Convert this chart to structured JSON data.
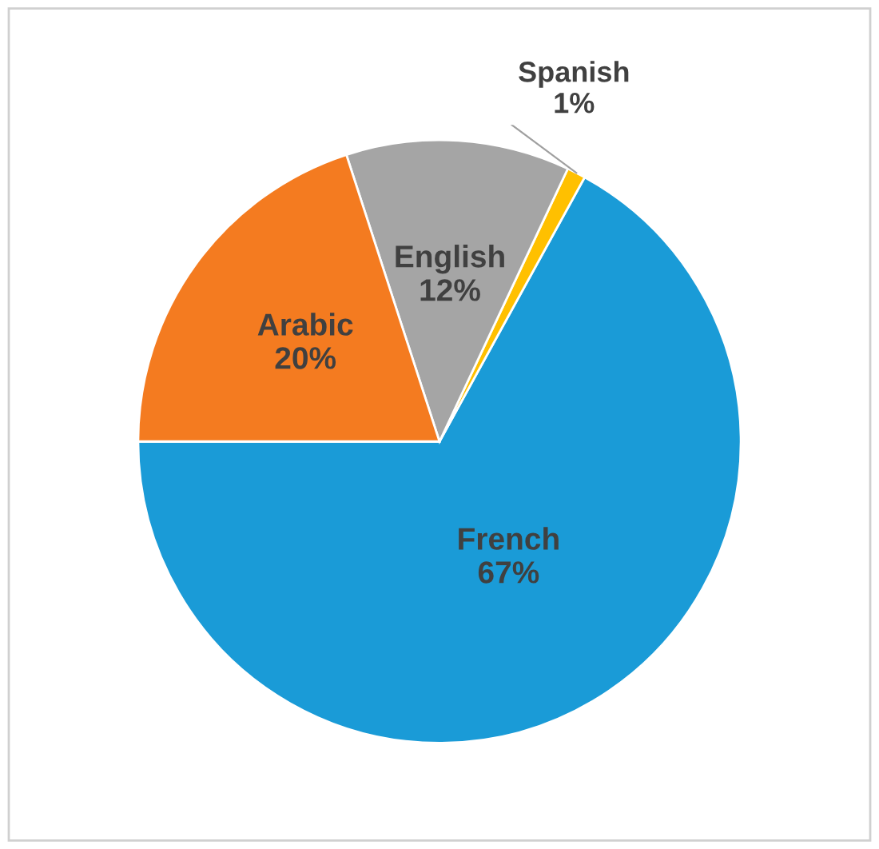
{
  "chart_data": {
    "type": "pie",
    "categories": [
      "French",
      "Spanish",
      "English",
      "Arabic"
    ],
    "values": [
      67,
      1,
      12,
      20
    ],
    "value_labels": [
      "67%",
      "1%",
      "12%",
      "20%"
    ],
    "colors": [
      "#1a9bd7",
      "#ffc000",
      "#a5a5a5",
      "#f47b20"
    ]
  }
}
